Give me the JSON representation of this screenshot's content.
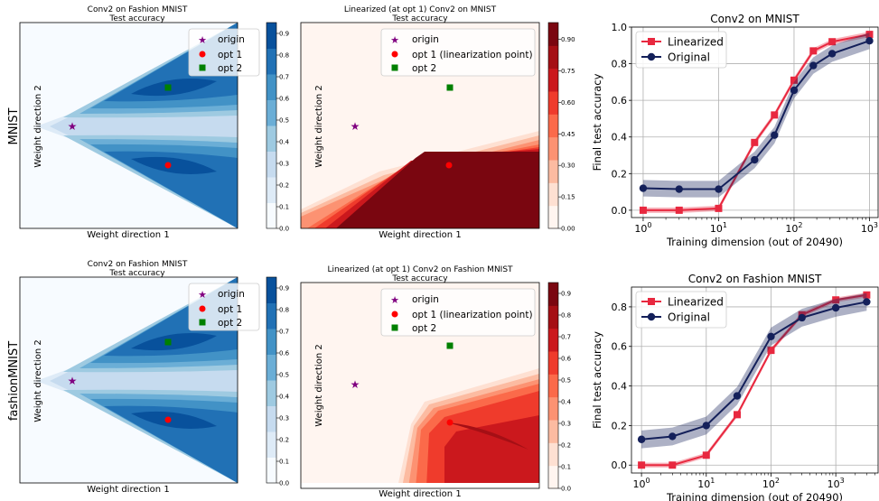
{
  "row_labels": [
    "MNIST",
    "fashionMNIST"
  ],
  "colors": {
    "blues": [
      "#f7fbff",
      "#deebf7",
      "#c6dbef",
      "#9ecae1",
      "#6baed6",
      "#4292c6",
      "#2171b5",
      "#08519c"
    ],
    "reds": [
      "#fff5f0",
      "#fee0d2",
      "#fcbba1",
      "#fc9272",
      "#fb6a4a",
      "#ef3b2c",
      "#cb181d",
      "#a50f15",
      "#7a0610"
    ],
    "linearized": "#e8283f",
    "original": "#14205a",
    "origin_marker": "#800080",
    "opt1_marker": "#ff0000",
    "opt2_marker": "#008000"
  },
  "landscape_legend": {
    "origin": "origin",
    "opt1": "opt 1",
    "opt2": "opt 2",
    "opt1_lin": "opt 1 (linearization point)"
  },
  "chart_data": [
    {
      "type": "heatmap",
      "title": "Conv2 on Fashion MNIST",
      "subtitle": "Test accuracy",
      "xlabel": "Weight direction 1",
      "ylabel": "Weight direction 2",
      "colormap": "Blues",
      "colorbar_ticks": [
        "0.0",
        "0.1",
        "0.2",
        "0.3",
        "0.4",
        "0.5",
        "0.6",
        "0.7",
        "0.8",
        "0.9"
      ],
      "colorbar_range": [
        0.0,
        0.95
      ]
    },
    {
      "type": "heatmap",
      "title": "Linearized (at opt 1) Conv2 on MNIST",
      "subtitle": "Test accuracy",
      "xlabel": "Weight direction 1",
      "ylabel": "Weight direction 2",
      "colormap": "Reds",
      "colorbar_ticks": [
        "0.00",
        "0.15",
        "0.30",
        "0.45",
        "0.60",
        "0.75",
        "0.90"
      ],
      "colorbar_range": [
        0.0,
        0.98
      ]
    },
    {
      "type": "line",
      "title": "Conv2 on MNIST",
      "xlabel": "Training dimension (out of 20490)",
      "ylabel": "Final test accuracy",
      "x_scale": "log",
      "xlim": [
        0.7,
        1300
      ],
      "ylim": [
        -0.04,
        1.0
      ],
      "xticks": [
        1,
        10,
        100,
        1000
      ],
      "xtick_labels": [
        "10^0",
        "10^1",
        "10^2",
        "10^3"
      ],
      "yticks": [
        "0.0",
        "0.2",
        "0.4",
        "0.6",
        "0.8",
        "1.0"
      ],
      "grid": true,
      "legend": "top-left",
      "series": [
        {
          "name": "Linearized",
          "x": [
            1,
            3,
            10,
            30,
            55,
            100,
            180,
            320,
            1000
          ],
          "y": [
            0.0,
            0.0,
            0.01,
            0.37,
            0.52,
            0.71,
            0.87,
            0.92,
            0.96
          ],
          "band": 0.015
        },
        {
          "name": "Original",
          "x": [
            1,
            3,
            10,
            30,
            55,
            100,
            180,
            320,
            1000
          ],
          "y": [
            0.12,
            0.115,
            0.115,
            0.275,
            0.41,
            0.655,
            0.79,
            0.855,
            0.925
          ],
          "band": 0.045
        }
      ]
    },
    {
      "type": "heatmap",
      "title": "Conv2 on Fashion MNIST",
      "subtitle": "Test accuracy",
      "xlabel": "Weight direction 1",
      "ylabel": "Weight direction 2",
      "colormap": "Blues",
      "colorbar_ticks": [
        "0.0",
        "0.1",
        "0.2",
        "0.3",
        "0.4",
        "0.5",
        "0.6",
        "0.7",
        "0.8",
        "0.9"
      ],
      "colorbar_range": [
        0.0,
        0.95
      ]
    },
    {
      "type": "heatmap",
      "title": "Linearized (at opt 1) Conv2 on Fashion MNIST",
      "subtitle": "Test accuracy",
      "xlabel": "Weight direction 1",
      "ylabel": "Weight direction 2",
      "colormap": "Reds",
      "colorbar_ticks": [
        "0.0",
        "0.1",
        "0.2",
        "0.3",
        "0.4",
        "0.5",
        "0.6",
        "0.7",
        "0.8",
        "0.9"
      ],
      "colorbar_range": [
        0.0,
        0.95
      ]
    },
    {
      "type": "line",
      "title": "Conv2 on Fashion MNIST",
      "xlabel": "Training dimension (out of 20490)",
      "ylabel": "Final test accuracy",
      "x_scale": "log",
      "xlim": [
        0.7,
        4500
      ],
      "ylim": [
        -0.04,
        0.9
      ],
      "xticks": [
        1,
        10,
        100,
        1000
      ],
      "xtick_labels": [
        "10^0",
        "10^1",
        "10^2",
        "10^3"
      ],
      "yticks": [
        "0.0",
        "0.2",
        "0.4",
        "0.6",
        "0.8"
      ],
      "grid": true,
      "legend": "top-left",
      "series": [
        {
          "name": "Linearized",
          "x": [
            1,
            3,
            10,
            30,
            100,
            300,
            1000,
            3000
          ],
          "y": [
            0.0,
            0.0,
            0.05,
            0.255,
            0.58,
            0.76,
            0.835,
            0.86
          ],
          "band": 0.012
        },
        {
          "name": "Original",
          "x": [
            1,
            3,
            10,
            30,
            100,
            300,
            1000,
            3000
          ],
          "y": [
            0.13,
            0.145,
            0.2,
            0.35,
            0.65,
            0.745,
            0.795,
            0.825
          ],
          "band": 0.045
        }
      ]
    }
  ]
}
